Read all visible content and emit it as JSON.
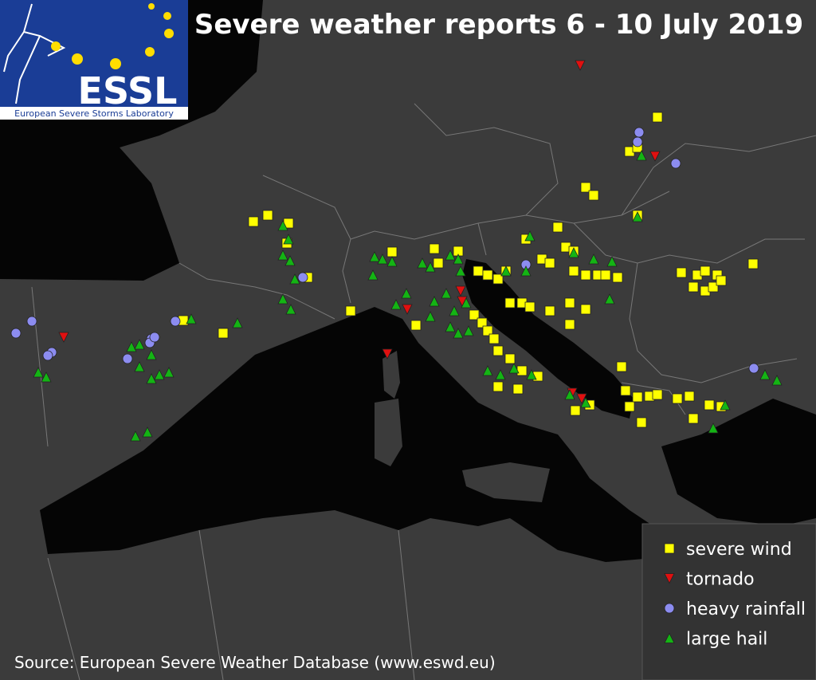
{
  "header": {
    "title": "Severe weather reports 6 - 10 July 2019",
    "logo": "ESSL",
    "logo_subtitle": "European Severe Storms Laboratory"
  },
  "legend": [
    {
      "label": "severe wind",
      "marker": "square",
      "color": "#ffff00"
    },
    {
      "label": "tornado",
      "marker": "triangle-down",
      "color": "#e01010"
    },
    {
      "label": "heavy rainfall",
      "marker": "circle",
      "color": "#8c8cf0"
    },
    {
      "label": "large hail",
      "marker": "triangle-up",
      "color": "#14b414"
    }
  ],
  "source": "Source: European Severe Weather Database  (www.eswd.eu)"
}
